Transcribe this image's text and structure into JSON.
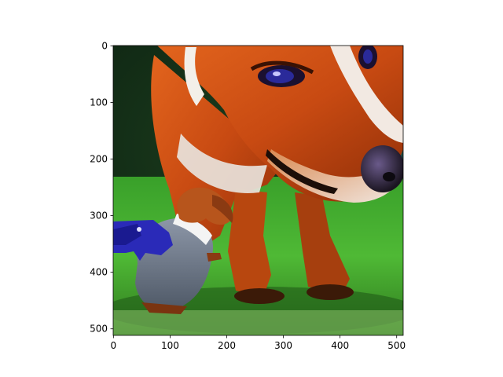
{
  "image": {
    "description_icon": "dog-portrait-image",
    "x_ticks": [
      "0",
      "100",
      "200",
      "300",
      "400",
      "500"
    ],
    "y_ticks": [
      "0",
      "100",
      "200",
      "300",
      "400",
      "500"
    ],
    "x_tick_values": [
      0,
      100,
      200,
      300,
      400,
      500
    ],
    "y_tick_values": [
      0,
      100,
      200,
      300,
      400,
      500
    ],
    "pixel_extent": [
      512,
      512
    ]
  }
}
